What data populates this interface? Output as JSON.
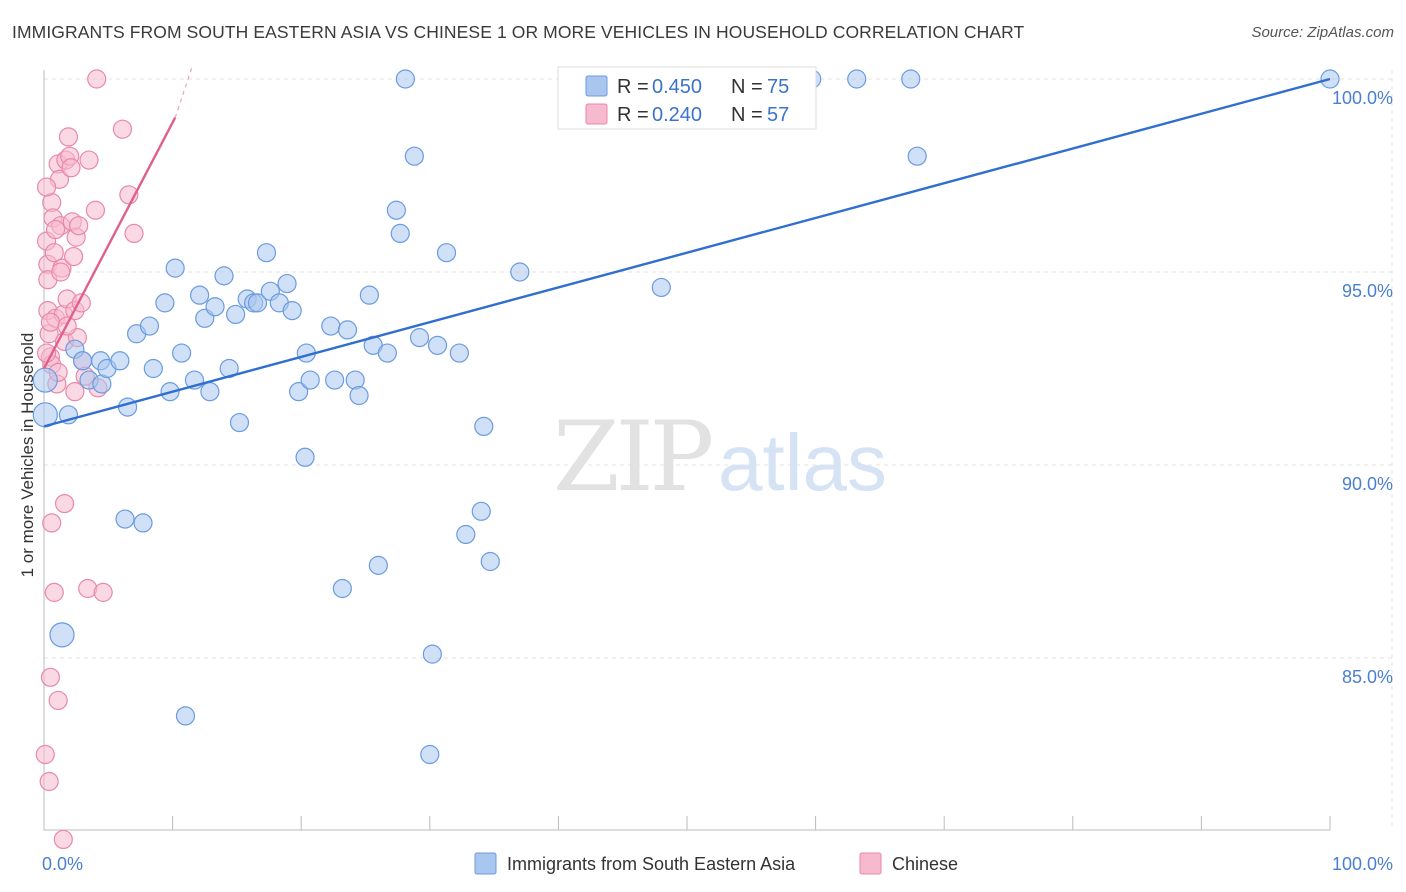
{
  "header": {
    "title": "IMMIGRANTS FROM SOUTH EASTERN ASIA VS CHINESE 1 OR MORE VEHICLES IN HOUSEHOLD CORRELATION CHART",
    "source": "Source: ZipAtlas.com"
  },
  "watermark": {
    "zip": "ZIP",
    "atlas": "atlas"
  },
  "chart_data": {
    "type": "scatter",
    "title": "IMMIGRANTS FROM SOUTH EASTERN ASIA VS CHINESE 1 OR MORE VEHICLES IN HOUSEHOLD CORRELATION CHART",
    "ylabel": "1 or more Vehicles in Household",
    "xlabel": "",
    "xlim": [
      0,
      100
    ],
    "ylim": [
      80.0,
      100.5
    ],
    "x_ticks": [
      {
        "value": 0,
        "label": "0.0%"
      },
      {
        "value": 100,
        "label": "100.0%"
      }
    ],
    "y_ticks": [
      {
        "value": 100,
        "label": "100.0%"
      },
      {
        "value": 95,
        "label": "95.0%"
      },
      {
        "value": 90,
        "label": "90.0%"
      },
      {
        "value": 85,
        "label": "85.0%"
      }
    ],
    "grid": true,
    "legend_position": "top-center",
    "stats": [
      {
        "r_label": "R =",
        "r_value": "0.450",
        "n_label": "N =",
        "n_value": "75"
      },
      {
        "r_label": "R =",
        "r_value": "0.240",
        "n_label": "N =",
        "n_value": "57"
      }
    ],
    "series": [
      {
        "name": "Immigrants from South Eastern Asia",
        "color": "#a9c6ee",
        "stroke": "#6b9be0",
        "trend_color": "#2f6fcf",
        "trend": {
          "x0": 0,
          "y0": 91.0,
          "x1": 100,
          "y1": 100.0
        },
        "points": [
          [
            0.1,
            92.2
          ],
          [
            0.1,
            91.3
          ],
          [
            1.9,
            91.3
          ],
          [
            2.4,
            93.0
          ],
          [
            3.0,
            92.7
          ],
          [
            3.5,
            92.2
          ],
          [
            4.4,
            92.7
          ],
          [
            4.5,
            92.1
          ],
          [
            4.9,
            92.5
          ],
          [
            5.9,
            92.7
          ],
          [
            6.3,
            88.6
          ],
          [
            6.5,
            91.5
          ],
          [
            7.2,
            93.4
          ],
          [
            7.7,
            88.5
          ],
          [
            8.2,
            93.6
          ],
          [
            8.5,
            92.5
          ],
          [
            9.4,
            94.2
          ],
          [
            9.8,
            91.9
          ],
          [
            10.2,
            95.1
          ],
          [
            10.7,
            92.9
          ],
          [
            11.0,
            83.5
          ],
          [
            11.7,
            92.2
          ],
          [
            12.1,
            94.4
          ],
          [
            12.5,
            93.8
          ],
          [
            12.9,
            91.9
          ],
          [
            13.3,
            94.1
          ],
          [
            14.0,
            94.9
          ],
          [
            14.4,
            92.5
          ],
          [
            14.9,
            93.9
          ],
          [
            15.2,
            91.1
          ],
          [
            15.8,
            94.3
          ],
          [
            16.3,
            94.2
          ],
          [
            16.6,
            94.2
          ],
          [
            17.3,
            95.5
          ],
          [
            17.6,
            94.5
          ],
          [
            18.3,
            94.2
          ],
          [
            18.9,
            94.7
          ],
          [
            19.3,
            94.0
          ],
          [
            19.8,
            91.9
          ],
          [
            20.4,
            92.9
          ],
          [
            20.7,
            92.2
          ],
          [
            22.3,
            93.6
          ],
          [
            22.6,
            92.2
          ],
          [
            23.2,
            86.8
          ],
          [
            23.6,
            93.5
          ],
          [
            24.2,
            92.2
          ],
          [
            24.5,
            91.8
          ],
          [
            25.3,
            94.4
          ],
          [
            25.6,
            93.1
          ],
          [
            26.0,
            87.4
          ],
          [
            26.7,
            92.9
          ],
          [
            27.4,
            96.6
          ],
          [
            27.7,
            96.0
          ],
          [
            28.1,
            100.0
          ],
          [
            28.8,
            98.0
          ],
          [
            29.2,
            93.3
          ],
          [
            30.0,
            82.5
          ],
          [
            30.2,
            85.1
          ],
          [
            30.6,
            93.1
          ],
          [
            31.3,
            95.5
          ],
          [
            32.3,
            92.9
          ],
          [
            32.8,
            88.2
          ],
          [
            34.0,
            88.8
          ],
          [
            34.2,
            91.0
          ],
          [
            34.7,
            87.5
          ],
          [
            37.0,
            95.0
          ],
          [
            44.2,
            100.0
          ],
          [
            48.0,
            94.6
          ],
          [
            59.7,
            100.0
          ],
          [
            63.2,
            100.0
          ],
          [
            67.4,
            100.0
          ],
          [
            67.9,
            98.0
          ],
          [
            100,
            100.0
          ],
          [
            1.4,
            85.6
          ],
          [
            20.3,
            90.2
          ]
        ],
        "big_points": [
          [
            0.1,
            92.2
          ],
          [
            0.1,
            91.3
          ],
          [
            1.4,
            85.6
          ]
        ]
      },
      {
        "name": "Chinese",
        "color": "#f7b9cd",
        "stroke": "#e889a8",
        "trend_color": "#e0608b",
        "trend": {
          "x0": 0,
          "y0": 92.5,
          "x1": 10.2,
          "y1": 99.0
        },
        "trend_dashed_to": {
          "x": 11.5,
          "y": 100.3
        },
        "points": [
          [
            0.1,
            82.5
          ],
          [
            0.4,
            81.8
          ],
          [
            0.5,
            84.5
          ],
          [
            0.6,
            88.5
          ],
          [
            0.8,
            86.7
          ],
          [
            1.1,
            83.9
          ],
          [
            1.5,
            80.3
          ],
          [
            1.6,
            89.0
          ],
          [
            3.4,
            86.8
          ],
          [
            4.6,
            86.7
          ],
          [
            0.2,
            95.8
          ],
          [
            0.3,
            95.2
          ],
          [
            0.3,
            94.8
          ],
          [
            0.3,
            94.0
          ],
          [
            0.4,
            93.4
          ],
          [
            0.5,
            92.8
          ],
          [
            0.6,
            92.6
          ],
          [
            0.6,
            96.8
          ],
          [
            0.7,
            96.4
          ],
          [
            0.8,
            95.5
          ],
          [
            0.9,
            93.8
          ],
          [
            1.0,
            92.1
          ],
          [
            1.1,
            97.8
          ],
          [
            1.2,
            97.4
          ],
          [
            1.3,
            96.2
          ],
          [
            1.4,
            95.1
          ],
          [
            1.5,
            93.9
          ],
          [
            1.6,
            93.2
          ],
          [
            1.7,
            97.9
          ],
          [
            1.8,
            94.3
          ],
          [
            1.9,
            98.5
          ],
          [
            2.0,
            98.0
          ],
          [
            2.2,
            96.3
          ],
          [
            2.3,
            95.4
          ],
          [
            2.4,
            94.0
          ],
          [
            2.5,
            95.9
          ],
          [
            2.6,
            93.3
          ],
          [
            2.7,
            96.2
          ],
          [
            3.0,
            92.7
          ],
          [
            3.5,
            97.9
          ],
          [
            4.0,
            96.6
          ],
          [
            4.1,
            100.0
          ],
          [
            4.2,
            92.0
          ],
          [
            6.1,
            98.7
          ],
          [
            6.6,
            97.0
          ],
          [
            7.0,
            96.0
          ],
          [
            0.2,
            97.2
          ],
          [
            0.9,
            96.1
          ],
          [
            1.3,
            95.0
          ],
          [
            2.1,
            97.7
          ],
          [
            2.9,
            94.2
          ],
          [
            0.5,
            93.7
          ],
          [
            1.8,
            93.6
          ],
          [
            2.4,
            91.9
          ],
          [
            3.2,
            92.3
          ],
          [
            0.2,
            92.9
          ],
          [
            1.1,
            92.4
          ]
        ]
      }
    ]
  },
  "legend": {
    "items": [
      {
        "label": "Immigrants from South Eastern Asia"
      },
      {
        "label": "Chinese"
      }
    ]
  }
}
